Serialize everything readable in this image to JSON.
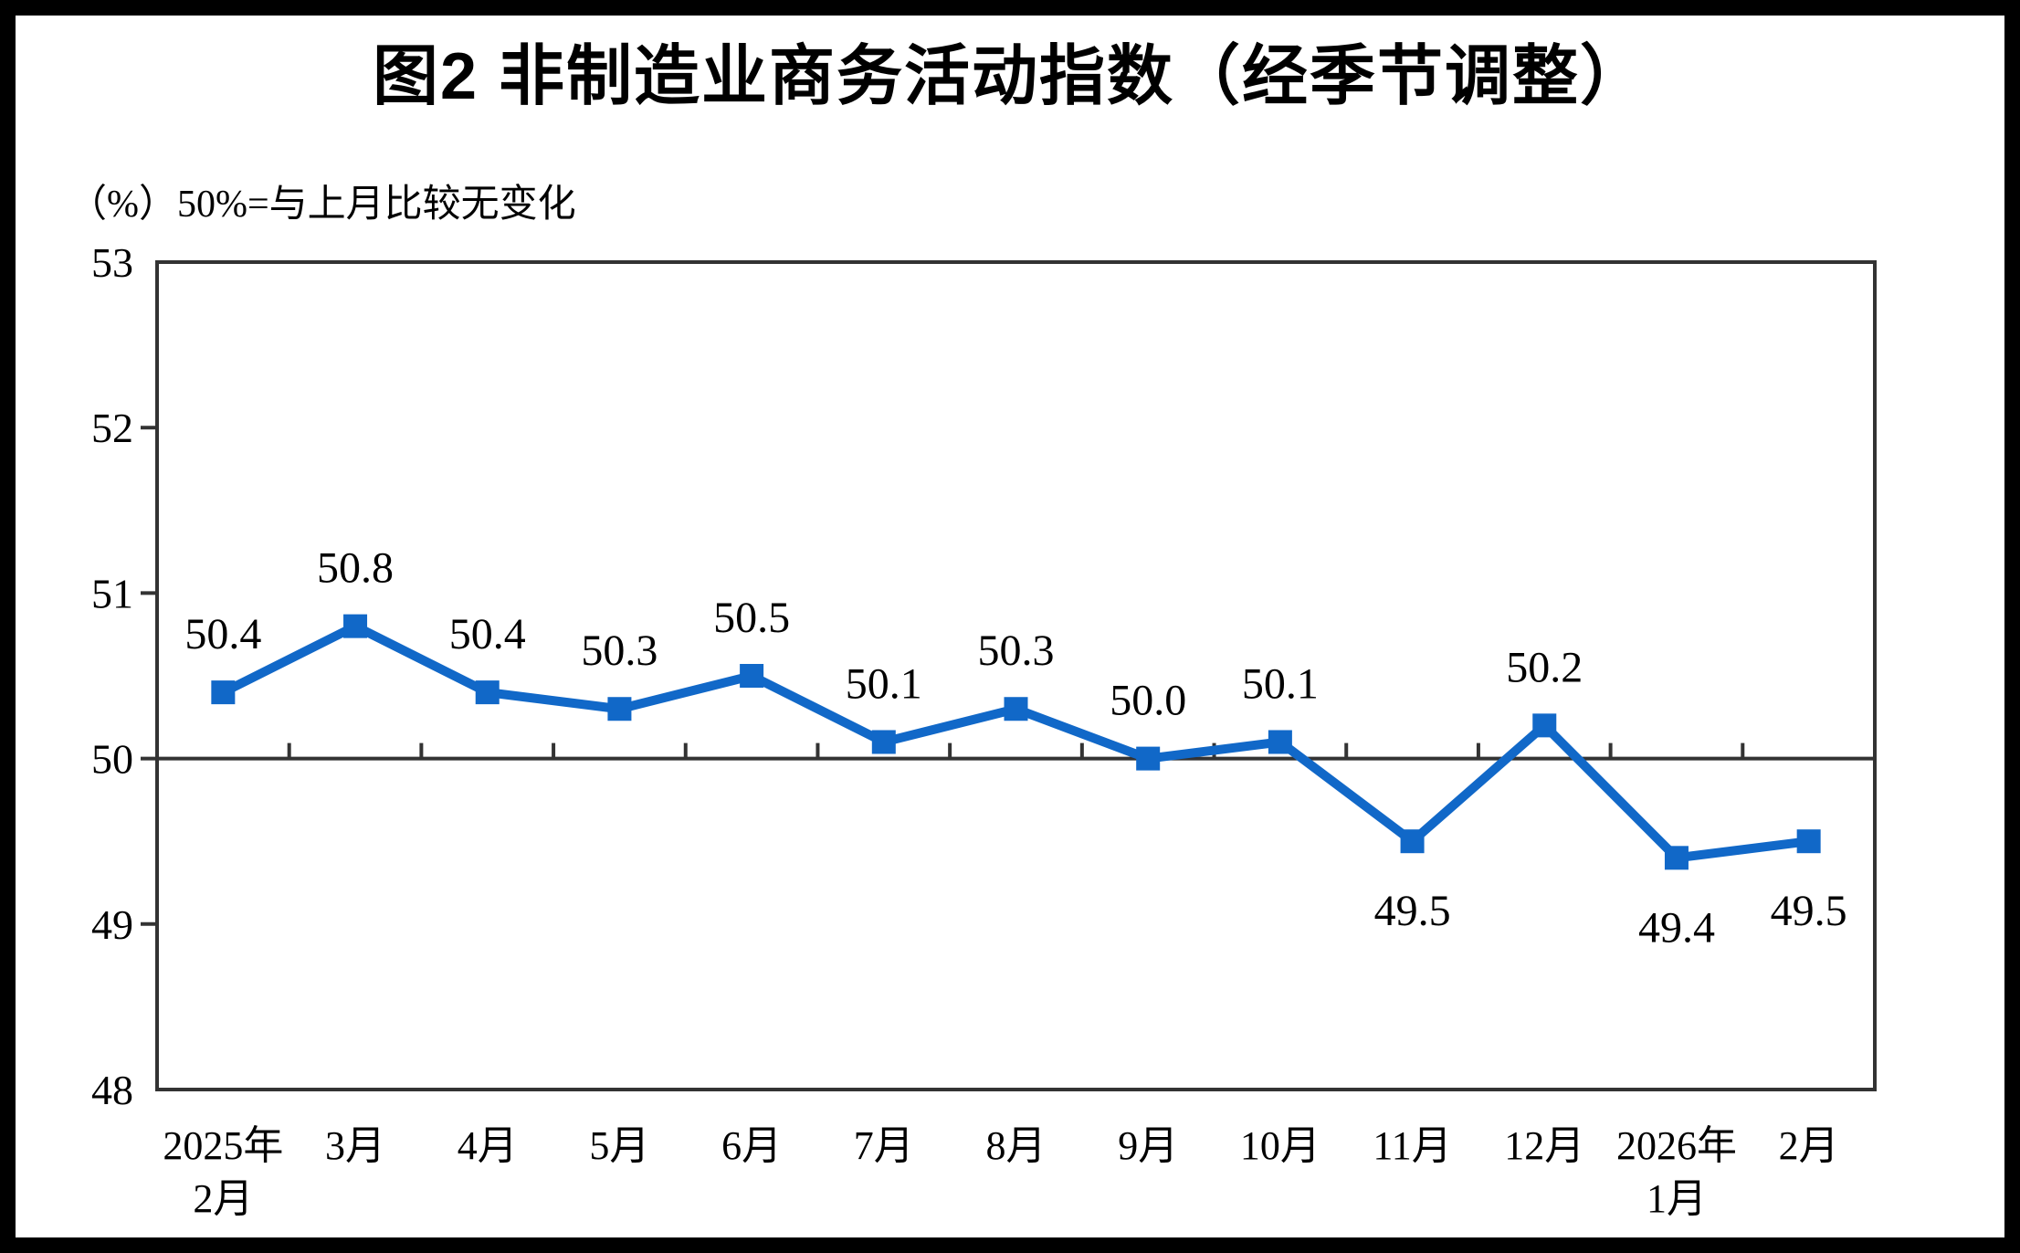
{
  "page": {
    "title": "图2 非制造业商务活动指数（经季节调整）",
    "unit_note": "（%）50%=与上月比较无变化"
  },
  "chart_data": {
    "type": "line",
    "title": "图2 非制造业商务活动指数（经季节调整）",
    "subtitle": "（%）50%=与上月比较无变化",
    "categories": [
      "2025年2月",
      "3月",
      "4月",
      "5月",
      "6月",
      "7月",
      "8月",
      "9月",
      "10月",
      "11月",
      "12月",
      "2026年1月",
      "2月"
    ],
    "category_label_lines": [
      [
        "2025年",
        "2月"
      ],
      [
        "3月"
      ],
      [
        "4月"
      ],
      [
        "5月"
      ],
      [
        "6月"
      ],
      [
        "7月"
      ],
      [
        "8月"
      ],
      [
        "9月"
      ],
      [
        "10月"
      ],
      [
        "11月"
      ],
      [
        "12月"
      ],
      [
        "2026年",
        "1月"
      ],
      [
        "2月"
      ]
    ],
    "series": [
      {
        "name": "非制造业商务活动指数",
        "values": [
          50.4,
          50.8,
          50.4,
          50.3,
          50.5,
          50.1,
          50.3,
          50.0,
          50.1,
          49.5,
          50.2,
          49.4,
          49.5
        ]
      }
    ],
    "data_labels": [
      "50.4",
      "50.8",
      "50.4",
      "50.3",
      "50.5",
      "50.1",
      "50.3",
      "50.0",
      "50.1",
      "49.5",
      "50.2",
      "49.4",
      "49.5"
    ],
    "ylabel": "%",
    "xlabel": "",
    "ylim": [
      48,
      53
    ],
    "yticks": [
      48,
      49,
      50,
      51,
      52,
      53
    ],
    "baseline_value": 50,
    "grid": false,
    "legend_position": "none",
    "marker": "square",
    "colors": {
      "series_line": "#1168C8",
      "marker_fill": "#1168C8",
      "axis_line": "#333333",
      "text": "#000000",
      "background": "#ffffff",
      "frame": "#000000"
    }
  }
}
